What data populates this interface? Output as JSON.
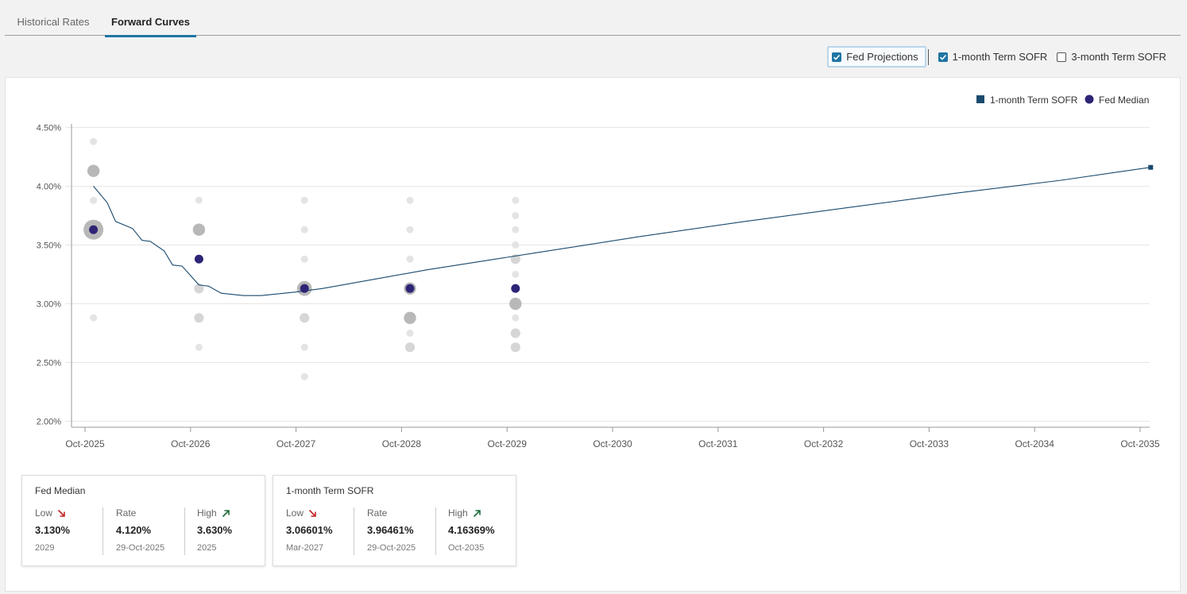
{
  "tabs": [
    {
      "label": "Historical Rates",
      "active": false
    },
    {
      "label": "Forward Curves",
      "active": true
    }
  ],
  "toggles": [
    {
      "label": "Fed Projections",
      "checked": true
    },
    {
      "label": "1-month Term SOFR",
      "checked": true
    },
    {
      "label": "3-month Term SOFR",
      "checked": false
    }
  ],
  "colors": {
    "sofr": "#1a4a6e",
    "fed_median": "#2e2476",
    "dots": "#b8b8b8",
    "tab_accent": "#1f75a3",
    "low_arrow": "#c22424",
    "high_arrow": "#1b6b3a"
  },
  "chart_data": {
    "type": "line",
    "title": "",
    "xlabel": "",
    "ylabel": "",
    "ylim": [
      1.95,
      4.55
    ],
    "y_ticks": [
      2.0,
      2.5,
      3.0,
      3.5,
      4.0,
      4.5
    ],
    "y_tick_labels": [
      "2.00%",
      "2.50%",
      "3.00%",
      "3.50%",
      "4.00%",
      "4.50%"
    ],
    "x_ticks": [
      "Oct-2025",
      "Oct-2026",
      "Oct-2027",
      "Oct-2028",
      "Oct-2029",
      "Oct-2030",
      "Oct-2031",
      "Oct-2032",
      "Oct-2033",
      "Oct-2034",
      "Oct-2035"
    ],
    "xlim_years": [
      2025.75,
      2035.9
    ],
    "grid": true,
    "legend": [
      {
        "name": "1-month Term SOFR",
        "shape": "square"
      },
      {
        "name": "Fed Median",
        "shape": "circle"
      }
    ],
    "series": [
      {
        "name": "1-month Term SOFR",
        "type": "line",
        "points": [
          [
            2025.83,
            4.0
          ],
          [
            2025.96,
            3.86
          ],
          [
            2026.04,
            3.7
          ],
          [
            2026.12,
            3.67
          ],
          [
            2026.2,
            3.64
          ],
          [
            2026.29,
            3.54
          ],
          [
            2026.37,
            3.53
          ],
          [
            2026.5,
            3.45
          ],
          [
            2026.58,
            3.33
          ],
          [
            2026.67,
            3.32
          ],
          [
            2026.83,
            3.16
          ],
          [
            2026.92,
            3.15
          ],
          [
            2027.04,
            3.09
          ],
          [
            2027.25,
            3.07
          ],
          [
            2027.42,
            3.07
          ],
          [
            2027.75,
            3.1
          ],
          [
            2028.0,
            3.13
          ],
          [
            2028.5,
            3.21
          ],
          [
            2029.0,
            3.29
          ],
          [
            2029.5,
            3.36
          ],
          [
            2030.0,
            3.43
          ],
          [
            2031.0,
            3.57
          ],
          [
            2032.0,
            3.7
          ],
          [
            2033.0,
            3.82
          ],
          [
            2034.0,
            3.94
          ],
          [
            2035.0,
            4.05
          ],
          [
            2035.85,
            4.16
          ]
        ]
      },
      {
        "name": "Fed Median",
        "type": "scatter",
        "points": [
          [
            2025.83,
            3.63
          ],
          [
            2026.83,
            3.38
          ],
          [
            2027.83,
            3.13
          ],
          [
            2028.83,
            3.13
          ],
          [
            2029.83,
            3.13
          ]
        ]
      }
    ],
    "fed_dots": [
      {
        "x": 2025.83,
        "y": 4.38,
        "count": 1
      },
      {
        "x": 2025.83,
        "y": 4.13,
        "count": 3
      },
      {
        "x": 2025.83,
        "y": 3.88,
        "count": 1
      },
      {
        "x": 2025.83,
        "y": 3.63,
        "count": 6
      },
      {
        "x": 2025.83,
        "y": 2.88,
        "count": 1
      },
      {
        "x": 2026.83,
        "y": 3.88,
        "count": 1
      },
      {
        "x": 2026.83,
        "y": 3.63,
        "count": 3
      },
      {
        "x": 2026.83,
        "y": 3.38,
        "count": 1
      },
      {
        "x": 2026.83,
        "y": 3.13,
        "count": 2
      },
      {
        "x": 2026.83,
        "y": 2.88,
        "count": 2
      },
      {
        "x": 2026.83,
        "y": 2.63,
        "count": 1
      },
      {
        "x": 2027.83,
        "y": 3.88,
        "count": 1
      },
      {
        "x": 2027.83,
        "y": 3.63,
        "count": 1
      },
      {
        "x": 2027.83,
        "y": 3.38,
        "count": 1
      },
      {
        "x": 2027.83,
        "y": 3.13,
        "count": 4
      },
      {
        "x": 2027.83,
        "y": 2.88,
        "count": 2
      },
      {
        "x": 2027.83,
        "y": 2.63,
        "count": 1
      },
      {
        "x": 2027.83,
        "y": 2.38,
        "count": 1
      },
      {
        "x": 2028.83,
        "y": 3.88,
        "count": 1
      },
      {
        "x": 2028.83,
        "y": 3.63,
        "count": 1
      },
      {
        "x": 2028.83,
        "y": 3.38,
        "count": 1
      },
      {
        "x": 2028.83,
        "y": 3.13,
        "count": 3
      },
      {
        "x": 2028.83,
        "y": 2.88,
        "count": 3
      },
      {
        "x": 2028.83,
        "y": 2.75,
        "count": 1
      },
      {
        "x": 2028.83,
        "y": 2.63,
        "count": 2
      },
      {
        "x": 2029.83,
        "y": 3.88,
        "count": 1
      },
      {
        "x": 2029.83,
        "y": 3.75,
        "count": 1
      },
      {
        "x": 2029.83,
        "y": 3.63,
        "count": 1
      },
      {
        "x": 2029.83,
        "y": 3.5,
        "count": 1
      },
      {
        "x": 2029.83,
        "y": 3.38,
        "count": 2
      },
      {
        "x": 2029.83,
        "y": 3.25,
        "count": 1
      },
      {
        "x": 2029.83,
        "y": 3.13,
        "count": 1
      },
      {
        "x": 2029.83,
        "y": 3.0,
        "count": 3
      },
      {
        "x": 2029.83,
        "y": 2.88,
        "count": 1
      },
      {
        "x": 2029.83,
        "y": 2.75,
        "count": 2
      },
      {
        "x": 2029.83,
        "y": 2.63,
        "count": 2
      }
    ]
  },
  "cards": [
    {
      "title": "Fed Median",
      "stats": [
        {
          "label": "Low",
          "value": "3.130%",
          "sub": "2029",
          "arrow": "down"
        },
        {
          "label": "Rate",
          "value": "4.120%",
          "sub": "29-Oct-2025",
          "arrow": ""
        },
        {
          "label": "High",
          "value": "3.630%",
          "sub": "2025",
          "arrow": "up"
        }
      ]
    },
    {
      "title": "1-month Term SOFR",
      "stats": [
        {
          "label": "Low",
          "value": "3.06601%",
          "sub": "Mar-2027",
          "arrow": "down"
        },
        {
          "label": "Rate",
          "value": "3.96461%",
          "sub": "29-Oct-2025",
          "arrow": ""
        },
        {
          "label": "High",
          "value": "4.16369%",
          "sub": "Oct-2035",
          "arrow": "up"
        }
      ]
    }
  ]
}
